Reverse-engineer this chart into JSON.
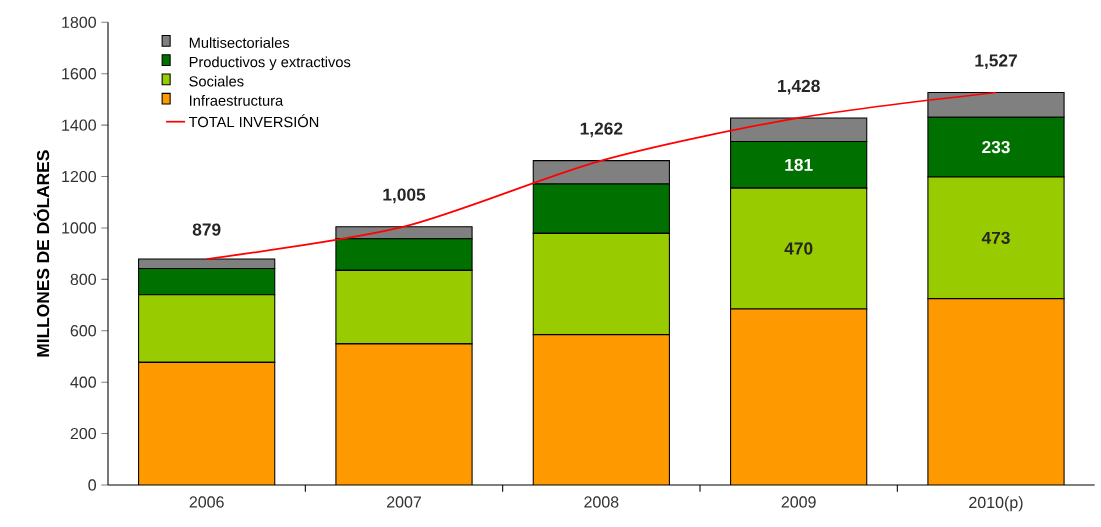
{
  "chart_data": {
    "type": "bar",
    "stacked": true,
    "ylabel": "MILLONES DE DÓLARES",
    "categories": [
      "2006",
      "2007",
      "2008",
      "2009",
      "2010(p)"
    ],
    "series": [
      {
        "name": "Infraestructura",
        "color": "#ff9900",
        "values": [
          477,
          549,
          585,
          685,
          725
        ]
      },
      {
        "name": "Sociales",
        "color": "#99cc00",
        "values": [
          263,
          286,
          394,
          470,
          473
        ],
        "value_labels": [
          null,
          null,
          null,
          "470",
          "473"
        ]
      },
      {
        "name": "Productivos y extractivos",
        "color": "#007000",
        "values": [
          102,
          123,
          192,
          181,
          233
        ],
        "value_labels": [
          null,
          null,
          null,
          "181",
          "233"
        ]
      },
      {
        "name": "Multisectoriales",
        "color": "#808080",
        "values": [
          37,
          47,
          91,
          92,
          96
        ]
      },
      {
        "name": "TOTAL INVERSIÓN",
        "type": "line",
        "color": "#ff0000",
        "values": [
          879,
          1005,
          1262,
          1428,
          1527
        ],
        "value_labels": [
          "879",
          "1,005",
          "1,262",
          "1,428",
          "1,527"
        ]
      }
    ],
    "ylim": [
      0,
      1800
    ],
    "yticks": [
      0,
      200,
      400,
      600,
      800,
      1000,
      1200,
      1400,
      1600,
      1800
    ],
    "legend": "top left",
    "grid": false,
    "marker": "none"
  }
}
